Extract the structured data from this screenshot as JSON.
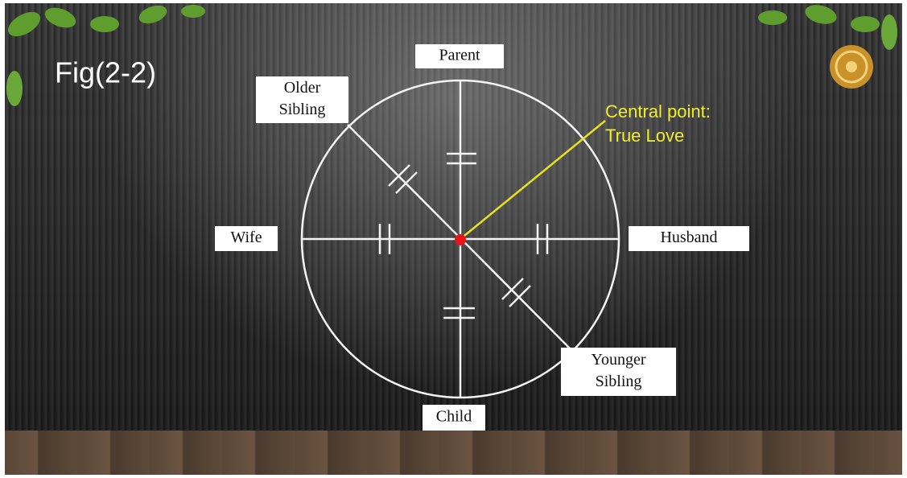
{
  "header": {
    "title": "Fig(2-2)"
  },
  "nodes": [
    {
      "lines": [
        "Parent"
      ]
    },
    {
      "lines": [
        "Older",
        "Sibling"
      ]
    },
    {
      "lines": [
        "Wife"
      ]
    },
    {
      "lines": [
        "Husband"
      ]
    },
    {
      "lines": [
        "Child"
      ]
    },
    {
      "lines": [
        "Younger",
        "Sibling"
      ]
    }
  ],
  "annotation": {
    "lines": [
      "Central point:",
      "True Love"
    ]
  }
}
